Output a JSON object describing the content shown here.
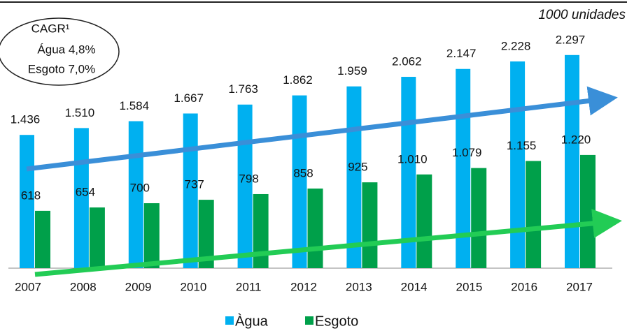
{
  "chart_data": {
    "type": "bar",
    "annotations": [
      "CAGR¹",
      "Água 4,8%",
      "Esgoto 7,0%",
      "1000 unidades"
    ],
    "categories": [
      "2007",
      "2008",
      "2009",
      "2010",
      "2011",
      "2012",
      "2013",
      "2014",
      "2015",
      "2016",
      "2017"
    ],
    "series": [
      {
        "name": "Àgua",
        "color": "#00b0f0",
        "values": [
          1436,
          1510,
          1584,
          1667,
          1763,
          1862,
          1959,
          2062,
          2147,
          2228,
          2297
        ],
        "value_labels": [
          "1.436",
          "1.510",
          "1.584",
          "1.667",
          "1.763",
          "1.862",
          "1.959",
          "2.062",
          "2.147",
          "2.228",
          "2.297"
        ]
      },
      {
        "name": "Esgoto",
        "color": "#00a04a",
        "values": [
          618,
          654,
          700,
          737,
          798,
          858,
          925,
          1010,
          1079,
          1155,
          1220
        ],
        "value_labels": [
          "618",
          "654",
          "700",
          "737",
          "798",
          "858",
          "925",
          "1.010",
          "1.079",
          "1.155",
          "1.220"
        ]
      }
    ],
    "ylim": [
      0,
      2860
    ]
  }
}
